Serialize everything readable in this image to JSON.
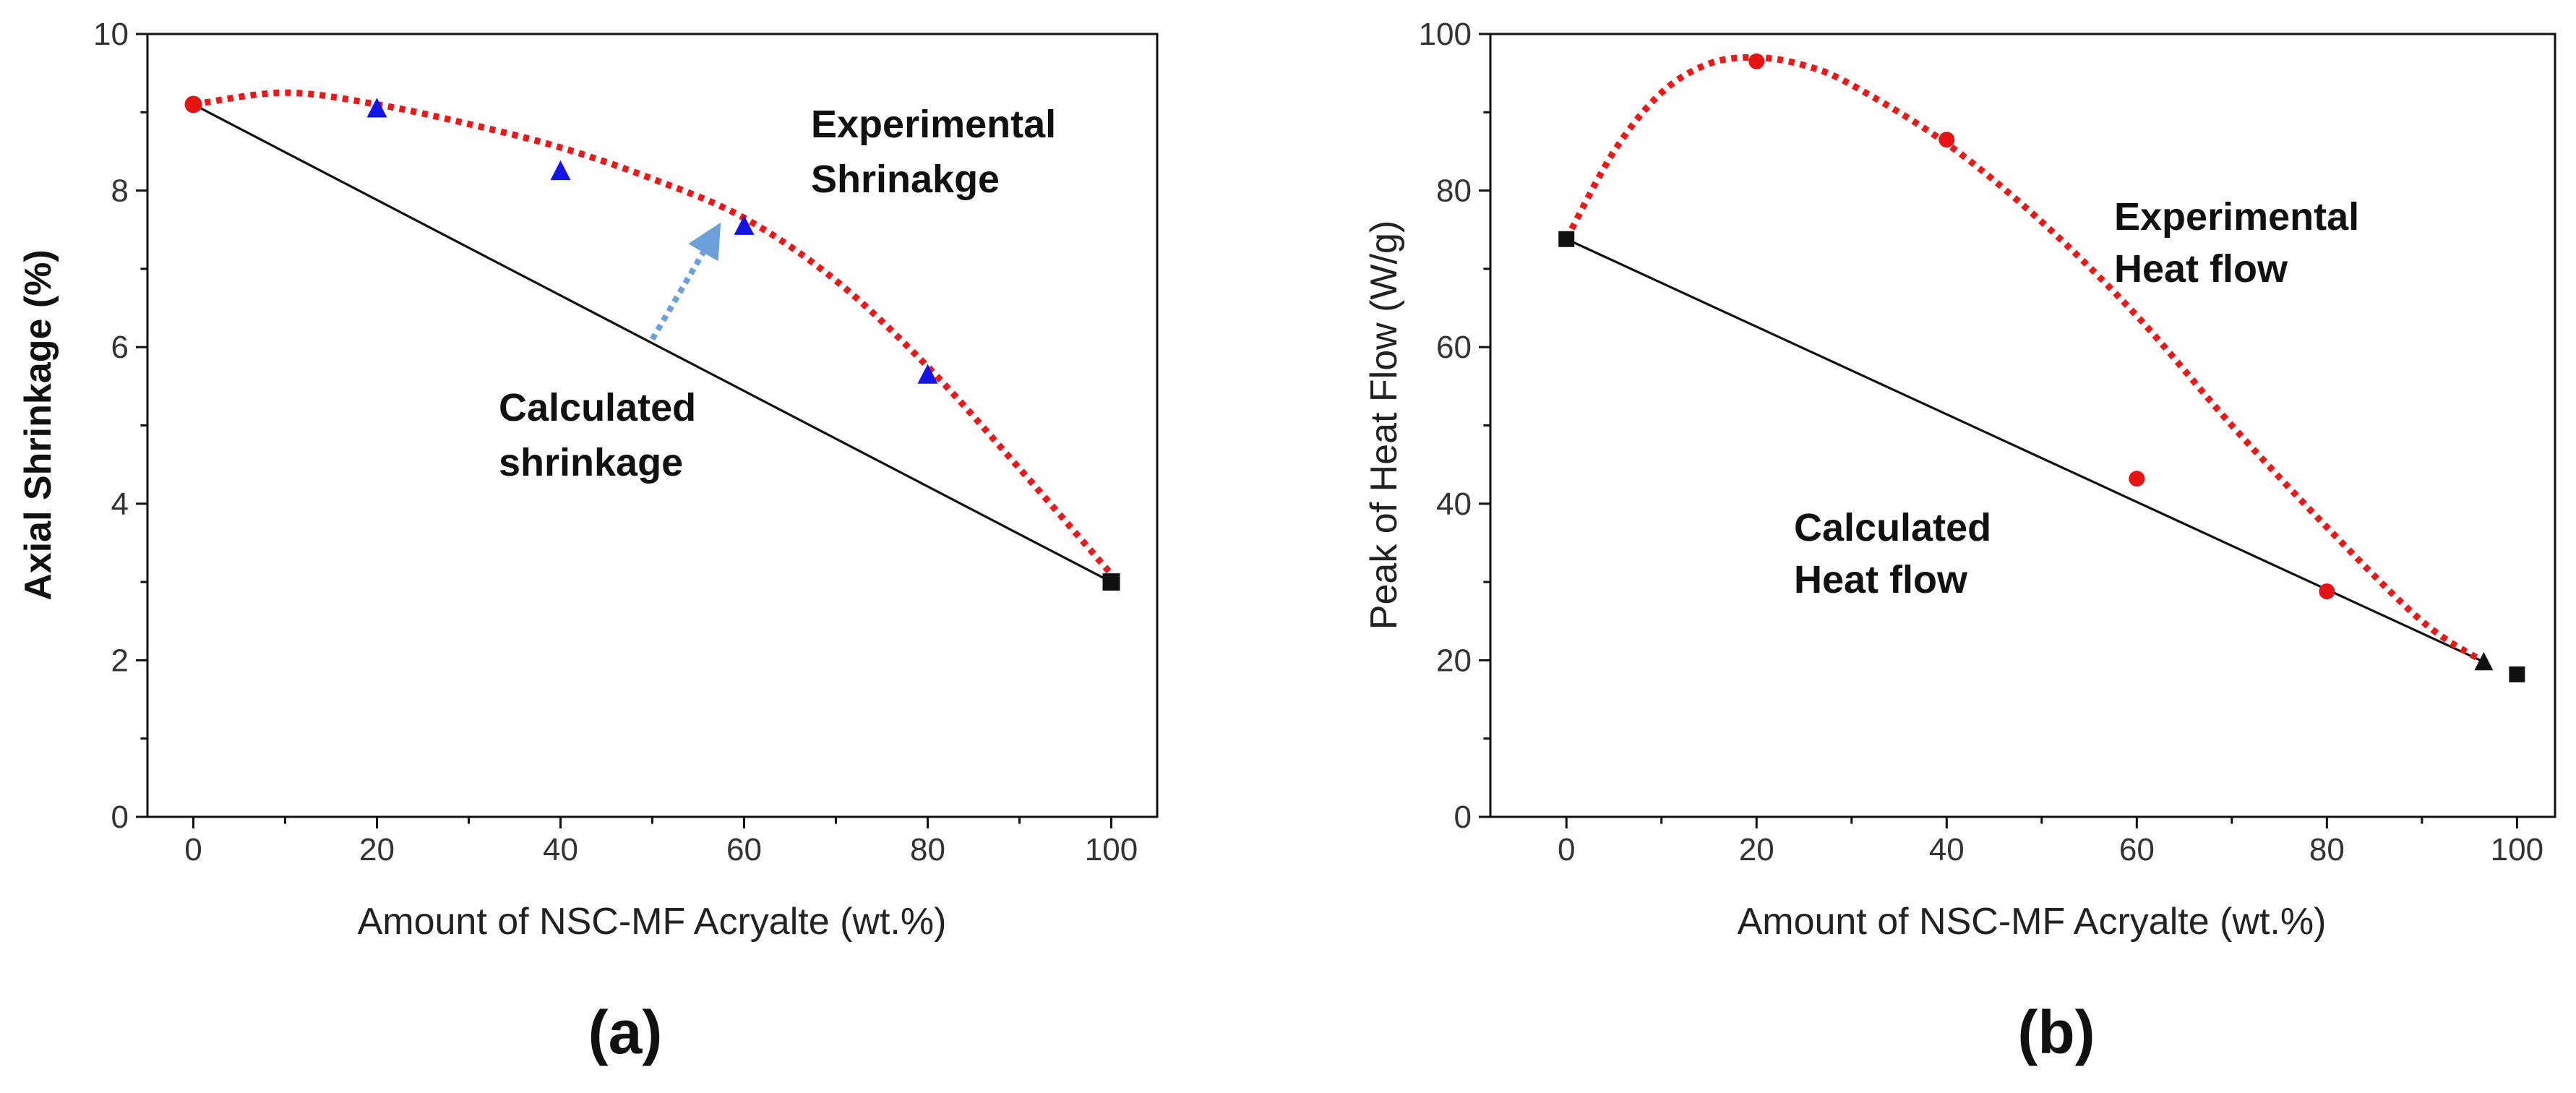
{
  "chart_data": [
    {
      "type": "scatter",
      "panel_label": "(a)",
      "xlabel": "Amount of NSC-MF Acryalte (wt.%)",
      "ylabel": "Axial Shrinkage (%)",
      "xlim": [
        -5,
        105
      ],
      "ylim": [
        0,
        10
      ],
      "xticks": [
        0,
        20,
        40,
        60,
        80,
        100
      ],
      "yticks": [
        0,
        2,
        4,
        6,
        8,
        10
      ],
      "series": [
        {
          "name": "Experimental points",
          "marker": "triangle",
          "color": "#1414e6",
          "x": [
            20,
            40,
            60,
            80
          ],
          "y": [
            9.05,
            8.25,
            7.55,
            5.65
          ]
        },
        {
          "name": "Start point",
          "marker": "circle",
          "color": "#e81414",
          "x": [
            0
          ],
          "y": [
            9.1
          ]
        },
        {
          "name": "End point",
          "marker": "square",
          "color": "#111111",
          "x": [
            100
          ],
          "y": [
            3.0
          ]
        },
        {
          "name": "Calculated shrinkage line",
          "style": "solid",
          "color": "#111111",
          "x": [
            0,
            100
          ],
          "y": [
            9.1,
            3.0
          ]
        },
        {
          "name": "Experimental shrinkage fit",
          "style": "dotted",
          "color": "#f01616",
          "x": [
            0,
            10,
            20,
            30,
            40,
            50,
            60,
            70,
            80,
            90,
            100
          ],
          "y": [
            9.1,
            9.25,
            9.1,
            8.85,
            8.55,
            8.15,
            7.65,
            6.85,
            5.75,
            4.45,
            3.1
          ]
        }
      ],
      "annotations": [
        {
          "text_lines": [
            "Experimental",
            "Shrinakge"
          ]
        },
        {
          "text_lines": [
            "Calculated",
            "shrinkage"
          ]
        },
        {
          "type": "arrow",
          "color": "#6ca0dc",
          "from": [
            50,
            6.1
          ],
          "to": [
            56.5,
            7.4
          ]
        }
      ]
    },
    {
      "type": "scatter",
      "panel_label": "(b)",
      "xlabel": "Amount of NSC-MF Acryalte (wt.%)",
      "ylabel": "Peak of Heat Flow (W/g)",
      "xlim": [
        -8,
        104
      ],
      "ylim": [
        0,
        100
      ],
      "xticks": [
        0,
        20,
        40,
        60,
        80,
        100
      ],
      "yticks": [
        0,
        20,
        40,
        60,
        80,
        100
      ],
      "series": [
        {
          "name": "Experimental points",
          "marker": "circle",
          "color": "#e81414",
          "x": [
            20,
            40,
            60,
            80
          ],
          "y": [
            96.5,
            86.5,
            43.2,
            28.8
          ]
        },
        {
          "name": "Calculated end points",
          "marker": "square",
          "color": "#111111",
          "x": [
            0,
            100
          ],
          "y": [
            73.8,
            18.2
          ]
        },
        {
          "name": "Triangle marker",
          "marker": "triangle",
          "color": "#111111",
          "x": [
            96.5
          ],
          "y": [
            19.8
          ]
        },
        {
          "name": "Calculated heat flow line",
          "style": "solid",
          "color": "#111111",
          "x": [
            0,
            96.5
          ],
          "y": [
            73.8,
            19.8
          ]
        },
        {
          "name": "Experimental heat flow fit",
          "style": "dotted",
          "color": "#f01616",
          "x": [
            0,
            5,
            10,
            15,
            20,
            25,
            30,
            40,
            50,
            60,
            70,
            80,
            90,
            96.5
          ],
          "y": [
            73.8,
            85,
            92.5,
            96.2,
            97.0,
            96.0,
            93.5,
            86,
            76,
            64,
            50,
            37,
            25,
            19.8
          ]
        }
      ],
      "annotations": [
        {
          "text_lines": [
            "Experimental",
            "Heat flow"
          ]
        },
        {
          "text_lines": [
            "Calculated",
            "Heat flow"
          ]
        }
      ]
    }
  ]
}
